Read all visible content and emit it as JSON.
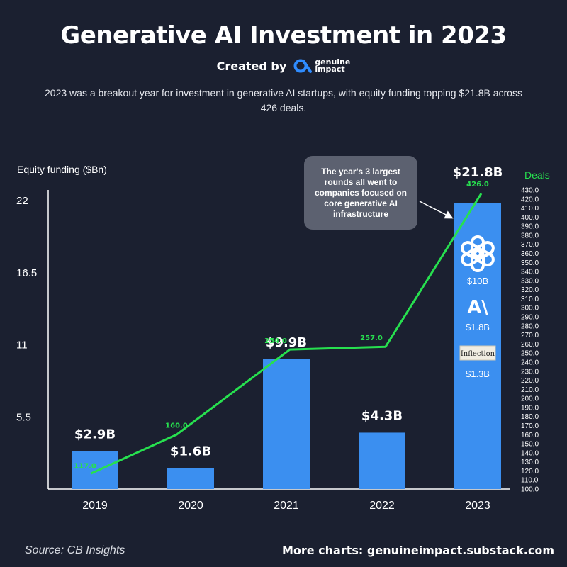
{
  "header": {
    "title": "Generative AI Investment in 2023",
    "created_by": "Created by",
    "logo_line1": "genuine",
    "logo_line2": "impact",
    "subtitle": "2023 was a breakout year for investment in generative AI startups, with equity funding topping $21.8B across 426 deals."
  },
  "callout": {
    "text": "The year's 3 largest rounds all went to companies focused on core generative AI infrastructure"
  },
  "footer": {
    "source": "Source: CB Insights",
    "more": "More charts: genuineimpact.substack.com"
  },
  "breakdown": [
    {
      "icon": "openai-logo-icon",
      "label": "$10B"
    },
    {
      "icon": "anthropic-logo-icon",
      "logo_text": "A\\",
      "label": "$1.8B"
    },
    {
      "icon": "inflection-logo-icon",
      "logo_text": "Inflection",
      "label": "$1.3B"
    }
  ],
  "colors": {
    "background": "#1b2030",
    "bar": "#3b8ff0",
    "line": "#27e04f",
    "callout": "#5c6170"
  },
  "chart_data": {
    "type": "bar",
    "categories": [
      "2019",
      "2020",
      "2021",
      "2022",
      "2023"
    ],
    "ylabel": "Equity funding ($Bn)",
    "ylim": [
      0,
      22
    ],
    "yticks": [
      "5.5",
      "11",
      "16.5",
      "22"
    ],
    "series": [
      {
        "type": "bar",
        "values": [
          2.9,
          1.6,
          9.9,
          4.3,
          21.8
        ],
        "labels": [
          "$2.9B",
          "$1.6B",
          "$9.9B",
          "$4.3B",
          "$21.8B"
        ]
      },
      {
        "type": "line",
        "axis": "right",
        "values": [
          117.0,
          160.0,
          254.0,
          257.0,
          426.0
        ],
        "labels": [
          "117.0",
          "160.0",
          "254.0",
          "257.0",
          "426.0"
        ]
      }
    ],
    "y2label": "Deals",
    "y2lim": [
      100,
      430
    ],
    "y2ticks": [
      "100.0",
      "110.0",
      "120.0",
      "130.0",
      "140.0",
      "150.0",
      "160.0",
      "170.0",
      "180.0",
      "190.0",
      "200.0",
      "210.0",
      "220.0",
      "230.0",
      "240.0",
      "250.0",
      "260.0",
      "270.0",
      "280.0",
      "290.0",
      "300.0",
      "310.0",
      "320.0",
      "330.0",
      "340.0",
      "350.0",
      "360.0",
      "370.0",
      "380.0",
      "390.0",
      "400.0",
      "410.0",
      "420.0",
      "430.0"
    ]
  }
}
